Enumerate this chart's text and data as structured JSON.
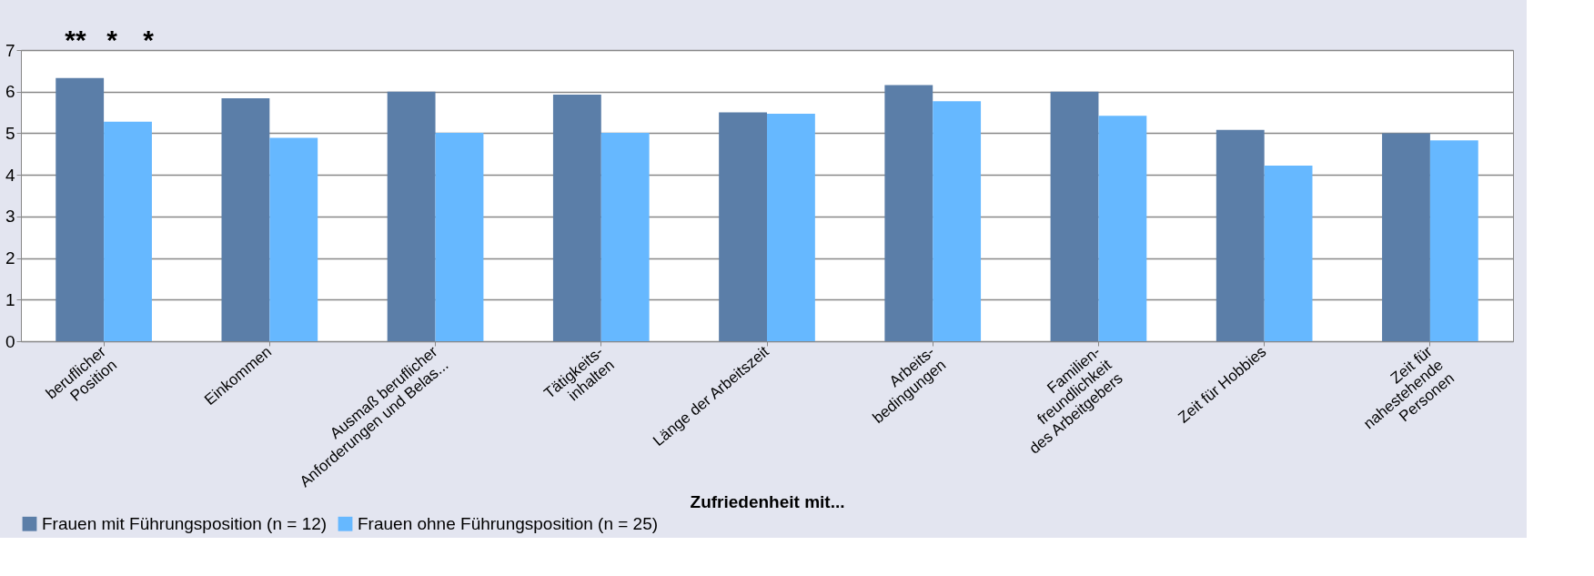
{
  "chart_data": {
    "type": "bar",
    "xlabel": "Zufriedenheit mit...",
    "categories": [
      "beruflicher\nPosition",
      "Einkommen",
      "Ausmaß beruflicher\nAnforderungen und  Belas...",
      "Tätigkeits-\ninhalten",
      "Länge der Arbeitszeit",
      "Arbeits-\nbedingungen",
      "Familien-\nfreundlichkeit\ndes Arbeitgebers",
      "Zeit für Hobbies",
      "Zeit für\nnahestehende\nPersonen"
    ],
    "series": [
      {
        "name": "Frauen mit Führungsposition (n = 12)",
        "color": "#5b7ea8",
        "values": [
          6.33,
          5.84,
          6.0,
          5.93,
          5.5,
          6.16,
          6.0,
          5.08,
          5.0
        ]
      },
      {
        "name": "Frauen ohne Führungsposition (n = 25)",
        "color": "#66b8ff",
        "values": [
          5.28,
          4.89,
          5.01,
          5.01,
          5.47,
          5.77,
          5.42,
          4.22,
          4.83
        ]
      }
    ],
    "ylim": [
      0,
      7
    ],
    "yticks": [
      0,
      1,
      2,
      3,
      4,
      5,
      6,
      7
    ],
    "grid": "y",
    "legend": "bottom",
    "annotations": [
      "**",
      "*",
      "*"
    ]
  }
}
